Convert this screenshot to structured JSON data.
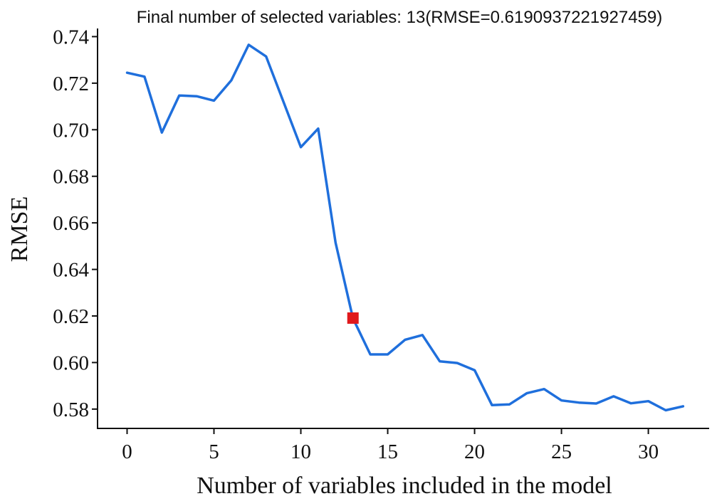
{
  "chart_data": {
    "type": "line",
    "title": "Final number of selected variables: 13(RMSE=0.6190937221927459)",
    "xlabel": "Number of variables included in the model",
    "ylabel": "RMSE",
    "xlim": [
      -1.7,
      33.5
    ],
    "ylim": [
      0.5717,
      0.7435
    ],
    "xticks": [
      0,
      5,
      10,
      15,
      20,
      25,
      30
    ],
    "xtick_labels": [
      "0",
      "5",
      "10",
      "15",
      "20",
      "25",
      "30"
    ],
    "yticks": [
      0.58,
      0.6,
      0.62,
      0.64,
      0.66,
      0.68,
      0.7,
      0.72,
      0.74
    ],
    "ytick_labels": [
      "0.58",
      "0.60",
      "0.62",
      "0.64",
      "0.66",
      "0.68",
      "0.70",
      "0.72",
      "0.74"
    ],
    "grid": false,
    "series": [
      {
        "color": "#1f6fdc",
        "x": [
          0,
          1,
          2,
          3,
          4,
          5,
          6,
          7,
          8,
          9,
          10,
          11,
          12,
          13,
          14,
          15,
          16,
          17,
          18,
          19,
          20,
          21,
          22,
          23,
          24,
          25,
          26,
          27,
          28,
          29,
          30,
          31,
          32
        ],
        "y": [
          0.7245,
          0.7228,
          0.6988,
          0.7147,
          0.7144,
          0.7125,
          0.7212,
          0.7365,
          0.7315,
          0.712,
          0.6925,
          0.7005,
          0.6515,
          0.619,
          0.6035,
          0.6035,
          0.6098,
          0.6118,
          0.6005,
          0.5998,
          0.5967,
          0.5817,
          0.582,
          0.5868,
          0.5886,
          0.5837,
          0.5828,
          0.5824,
          0.5855,
          0.5825,
          0.5834,
          0.5795,
          0.5812
        ]
      }
    ],
    "marker": {
      "x": 13,
      "y": 0.6190937221927459,
      "color": "#e0191c",
      "shape": "square"
    }
  }
}
